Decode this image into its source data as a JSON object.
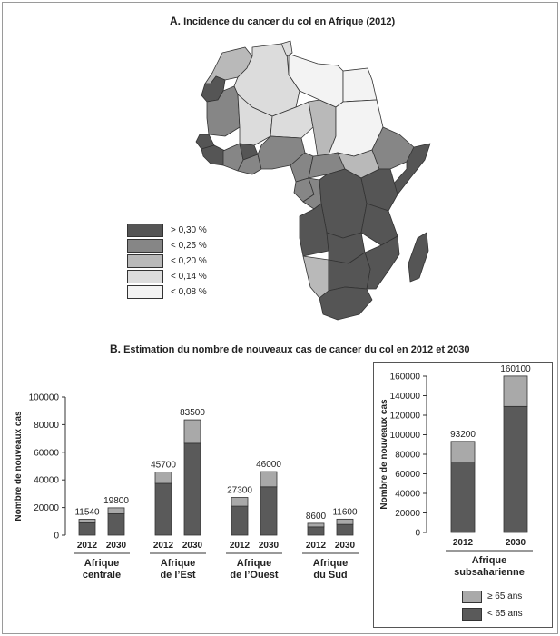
{
  "map": {
    "title_letter": "A.",
    "title_text": "Incidence du cancer du col en Afrique (2012)",
    "legend": [
      {
        "label": "> 0,30 %",
        "color": "#555555"
      },
      {
        "label": "< 0,25 %",
        "color": "#868686"
      },
      {
        "label": "< 0,20 %",
        "color": "#b9b9b9"
      },
      {
        "label": "< 0,14 %",
        "color": "#dcdcdc"
      },
      {
        "label": "< 0,08 %",
        "color": "#f3f3f3"
      }
    ]
  },
  "section_b": {
    "title_letter": "B.",
    "title_text": "Estimation du nombre de nouveaux cas de cancer du col en 2012 et 2030"
  },
  "colors": {
    "under65": "#5a5a5a",
    "over65": "#a9a9a9"
  },
  "chart_data": [
    {
      "type": "bar",
      "stacked": true,
      "ylabel": "Nombre de nouveaux cas",
      "ylim": [
        0,
        100000
      ],
      "yticks": [
        "0",
        "20000",
        "40000",
        "60000",
        "80000",
        "100000"
      ],
      "groups": [
        {
          "label_lines": [
            "Afrique",
            "centrale"
          ],
          "bars": [
            {
              "year": "2012",
              "under65": 9000,
              "over65": 2540,
              "total_label": "11540"
            },
            {
              "year": "2030",
              "under65": 15500,
              "over65": 4300,
              "total_label": "19800"
            }
          ]
        },
        {
          "label_lines": [
            "Afrique",
            "de l’Est"
          ],
          "bars": [
            {
              "year": "2012",
              "under65": 37500,
              "over65": 8200,
              "total_label": "45700"
            },
            {
              "year": "2030",
              "under65": 66500,
              "over65": 17000,
              "total_label": "83500"
            }
          ]
        },
        {
          "label_lines": [
            "Afrique",
            "de l’Ouest"
          ],
          "bars": [
            {
              "year": "2012",
              "under65": 21000,
              "over65": 6300,
              "total_label": "27300"
            },
            {
              "year": "2030",
              "under65": 35000,
              "over65": 11000,
              "total_label": "46000"
            }
          ]
        },
        {
          "label_lines": [
            "Afrique",
            "du Sud"
          ],
          "bars": [
            {
              "year": "2012",
              "under65": 6000,
              "over65": 2600,
              "total_label": "8600"
            },
            {
              "year": "2030",
              "under65": 7800,
              "over65": 3800,
              "total_label": "11600"
            }
          ]
        }
      ]
    },
    {
      "type": "bar",
      "stacked": true,
      "ylabel": "Nombre de nouveaux cas",
      "ylim": [
        0,
        160000
      ],
      "yticks": [
        "0",
        "20000",
        "40000",
        "60000",
        "80000",
        "100000",
        "120000",
        "140000",
        "160000"
      ],
      "groups": [
        {
          "label_lines": [
            "Afrique",
            "subsaharienne"
          ],
          "bars": [
            {
              "year": "2012",
              "under65": 72000,
              "over65": 21200,
              "total_label": "93200"
            },
            {
              "year": "2030",
              "under65": 129000,
              "over65": 31100,
              "total_label": "160100"
            }
          ]
        }
      ],
      "legend": [
        {
          "label": "≥ 65 ans",
          "key": "over65"
        },
        {
          "label": "< 65 ans",
          "key": "under65"
        }
      ]
    }
  ]
}
